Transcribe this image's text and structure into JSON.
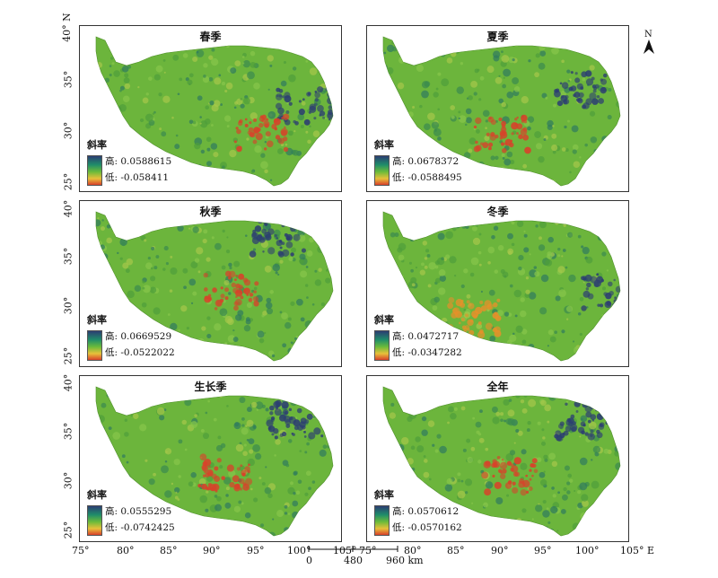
{
  "panels": [
    {
      "title": "春季",
      "legend_title": "斜率",
      "high": "高: 0.0588615",
      "low": "低: -0.058411"
    },
    {
      "title": "夏季",
      "legend_title": "斜率",
      "high": "高: 0.0678372",
      "low": "低: -0.0588495"
    },
    {
      "title": "秋季",
      "legend_title": "斜率",
      "high": "高: 0.0669529",
      "low": "低: -0.0522022"
    },
    {
      "title": "冬季",
      "legend_title": "斜率",
      "high": "高: 0.0472717",
      "low": "低: -0.0347282"
    },
    {
      "title": "生长季",
      "legend_title": "斜率",
      "high": "高: 0.0555295",
      "low": "低: -0.0742425"
    },
    {
      "title": "全年",
      "legend_title": "斜率",
      "high": "高: 0.0570612",
      "low": "低: -0.0570162"
    }
  ],
  "lat_ticks": {
    "top": [
      "40° N",
      "35°",
      "30°",
      "25°"
    ],
    "middle": [
      "40°",
      "35°",
      "30°",
      "25°"
    ],
    "bottom": [
      "40°",
      "35°",
      "30°",
      "25°"
    ]
  },
  "lon_ticks_left": [
    "75°",
    "80°",
    "85°",
    "90°",
    "95°",
    "100°",
    "105°"
  ],
  "lon_ticks_right": [
    "75°",
    "80°",
    "85°",
    "90°",
    "95°",
    "100°",
    "105° E"
  ],
  "compass": {
    "label": "N",
    "icon": "north-arrow-icon"
  },
  "scale": {
    "labels": [
      "0",
      "480",
      "960 km"
    ]
  },
  "colors": {
    "high": "#2c3e72",
    "mid": "#6dbb3a",
    "low": "#d9412a"
  }
}
